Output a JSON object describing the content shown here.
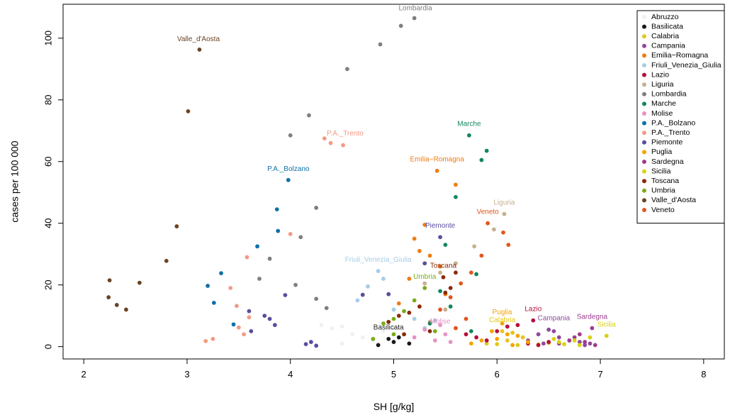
{
  "chart_data": {
    "type": "scatter",
    "title": "",
    "xlabel": "SH [g/kg]",
    "ylabel": "cases per 100 000",
    "xlim": [
      1.8,
      8.2
    ],
    "ylim": [
      -4,
      111
    ],
    "xticks": [
      2,
      3,
      4,
      5,
      6,
      7,
      8
    ],
    "yticks": [
      0,
      20,
      40,
      60,
      80,
      100
    ],
    "grid": false,
    "legend_position": "top-right",
    "series": [
      {
        "name": "Abruzzo",
        "color": "#f0f0f0",
        "label": "",
        "points": [
          [
            4.3,
            7
          ],
          [
            4.4,
            6
          ],
          [
            4.5,
            6.5
          ],
          [
            4.6,
            4
          ],
          [
            4.7,
            3
          ],
          [
            4.9,
            5
          ],
          [
            5,
            6
          ],
          [
            5.1,
            4
          ],
          [
            4.8,
            2
          ],
          [
            4.5,
            1
          ]
        ]
      },
      {
        "name": "Basilicata",
        "color": "#1a1a1a",
        "label": "Basilicata",
        "points": [
          [
            4.95,
            2.5
          ],
          [
            5.0,
            1.5
          ],
          [
            4.85,
            0.5
          ],
          [
            5.15,
            1
          ],
          [
            5.05,
            3
          ]
        ]
      },
      {
        "name": "Calabria",
        "color": "#e6c619",
        "label": "Calabria",
        "points": [
          [
            5.9,
            1
          ],
          [
            6.0,
            0.8
          ],
          [
            6.1,
            2
          ],
          [
            6.2,
            0.5
          ],
          [
            6.3,
            1.5
          ],
          [
            6.4,
            0.7
          ],
          [
            6.5,
            1.2
          ],
          [
            6.05,
            5
          ],
          [
            6.15,
            4.5
          ],
          [
            6.25,
            3
          ]
        ]
      },
      {
        "name": "Campania",
        "color": "#8e4a9c",
        "label": "Campania",
        "points": [
          [
            6.4,
            4
          ],
          [
            6.5,
            5.5
          ],
          [
            6.55,
            5
          ],
          [
            6.6,
            3
          ],
          [
            6.7,
            2
          ],
          [
            6.8,
            1.5
          ],
          [
            6.9,
            1
          ],
          [
            6.3,
            2
          ],
          [
            6.45,
            1
          ],
          [
            6.85,
            0.5
          ]
        ]
      },
      {
        "name": "Emilia-Romagna",
        "color": "#ee7d10",
        "label": "Emilia−Romagna",
        "points": [
          [
            5.42,
            57
          ],
          [
            5.6,
            52.5
          ],
          [
            5.3,
            39.5
          ],
          [
            5.2,
            35
          ],
          [
            5.25,
            31
          ],
          [
            5.45,
            26
          ],
          [
            5.35,
            29.5
          ],
          [
            5.15,
            22
          ],
          [
            5.05,
            14
          ],
          [
            5.5,
            17
          ]
        ]
      },
      {
        "name": "Friuli_Venezia_Giulia",
        "color": "#a6cce6",
        "label": "Friuli_Venezia_Giulia",
        "points": [
          [
            4.85,
            24.5
          ],
          [
            4.9,
            22
          ],
          [
            4.75,
            19.5
          ],
          [
            5.0,
            12
          ],
          [
            5.2,
            9
          ],
          [
            5.3,
            6
          ],
          [
            4.65,
            15
          ],
          [
            5.4,
            8.5
          ]
        ]
      },
      {
        "name": "Lazio",
        "color": "#b5113b",
        "label": "Lazio",
        "points": [
          [
            6.35,
            8.5
          ],
          [
            6.2,
            7
          ],
          [
            6.1,
            6.5
          ],
          [
            6.0,
            5
          ],
          [
            5.8,
            3
          ],
          [
            5.9,
            2
          ],
          [
            6.3,
            1
          ],
          [
            6.5,
            1.5
          ],
          [
            5.7,
            4
          ],
          [
            6.4,
            0.5
          ]
        ]
      },
      {
        "name": "Liguria",
        "color": "#c4b08f",
        "label": "Liguria",
        "points": [
          [
            6.07,
            43
          ],
          [
            5.97,
            38
          ],
          [
            5.78,
            32.5
          ],
          [
            5.6,
            27
          ],
          [
            5.45,
            24
          ],
          [
            5.3,
            20.5
          ],
          [
            5.5,
            12
          ],
          [
            5.35,
            8
          ]
        ]
      },
      {
        "name": "Lombardia",
        "color": "#7f7f7f",
        "label": "Lombardia",
        "points": [
          [
            5.2,
            106.5
          ],
          [
            5.07,
            104
          ],
          [
            4.87,
            98
          ],
          [
            4.55,
            90
          ],
          [
            4.18,
            75
          ],
          [
            4.0,
            68.5
          ],
          [
            4.25,
            45
          ],
          [
            4.1,
            35.5
          ],
          [
            3.8,
            28.5
          ],
          [
            3.7,
            22
          ],
          [
            4.05,
            20
          ],
          [
            4.25,
            15.5
          ],
          [
            4.35,
            12.5
          ]
        ]
      },
      {
        "name": "Marche",
        "color": "#13875c",
        "label": "Marche",
        "points": [
          [
            5.73,
            68.5
          ],
          [
            5.9,
            63.5
          ],
          [
            5.85,
            60.5
          ],
          [
            5.6,
            48.5
          ],
          [
            5.5,
            33
          ],
          [
            5.8,
            23.5
          ],
          [
            5.45,
            18
          ],
          [
            5.55,
            13
          ],
          [
            5.35,
            7.5
          ],
          [
            5.75,
            5
          ]
        ]
      },
      {
        "name": "Molise",
        "color": "#e792c6",
        "label": "Molise",
        "points": [
          [
            5.45,
            7
          ],
          [
            5.3,
            5.5
          ],
          [
            5.5,
            4
          ],
          [
            5.2,
            3
          ],
          [
            5.4,
            2
          ],
          [
            5.55,
            1.5
          ],
          [
            5.6,
            6
          ]
        ]
      },
      {
        "name": "P.A._Bolzano",
        "color": "#0f71a8",
        "label": "P.A._Bolzano",
        "points": [
          [
            3.98,
            54
          ],
          [
            3.87,
            44.5
          ],
          [
            3.88,
            37.5
          ],
          [
            3.68,
            32.5
          ],
          [
            3.33,
            23.8
          ],
          [
            3.2,
            19.7
          ],
          [
            3.26,
            14.2
          ],
          [
            3.45,
            7.2
          ]
        ]
      },
      {
        "name": "P.A._Trento",
        "color": "#f39a84",
        "label": "P.A._Trento",
        "points": [
          [
            4.33,
            67.5
          ],
          [
            4.39,
            66
          ],
          [
            4.51,
            65.3
          ],
          [
            4.0,
            36.5
          ],
          [
            3.58,
            29
          ],
          [
            3.42,
            19
          ],
          [
            3.48,
            13.2
          ],
          [
            3.6,
            9.5
          ],
          [
            3.5,
            6.2
          ],
          [
            3.55,
            4
          ],
          [
            3.25,
            2.5
          ],
          [
            3.18,
            1.8
          ]
        ]
      },
      {
        "name": "Piemonte",
        "color": "#5a4d9c",
        "label": "Piemonte",
        "points": [
          [
            5.45,
            35.5
          ],
          [
            5.3,
            27
          ],
          [
            4.95,
            17
          ],
          [
            4.7,
            16.8
          ],
          [
            3.95,
            16.7
          ],
          [
            3.6,
            11.5
          ],
          [
            3.75,
            10
          ],
          [
            3.8,
            9
          ],
          [
            3.85,
            7
          ],
          [
            3.62,
            5
          ],
          [
            4.2,
            1.5
          ],
          [
            4.15,
            0.8
          ],
          [
            4.25,
            0.3
          ]
        ]
      },
      {
        "name": "Puglia",
        "color": "#f5a300",
        "label": "Puglia",
        "points": [
          [
            6.05,
            7.5
          ],
          [
            5.95,
            5
          ],
          [
            6.1,
            4
          ],
          [
            6.2,
            3.5
          ],
          [
            6.0,
            2.5
          ],
          [
            5.85,
            2
          ],
          [
            6.3,
            1.5
          ],
          [
            6.15,
            0.5
          ],
          [
            5.75,
            1
          ]
        ]
      },
      {
        "name": "Sardegna",
        "color": "#9c3d8e",
        "label": "Sardegna",
        "points": [
          [
            6.92,
            6
          ],
          [
            6.8,
            4
          ],
          [
            6.75,
            3
          ],
          [
            6.7,
            2
          ],
          [
            6.6,
            1
          ],
          [
            6.85,
            1.5
          ],
          [
            6.95,
            0.5
          ]
        ]
      },
      {
        "name": "Sicilia",
        "color": "#d9d20f",
        "label": "Sicilia",
        "points": [
          [
            7.06,
            3.5
          ],
          [
            6.9,
            3
          ],
          [
            6.75,
            2
          ],
          [
            6.6,
            1.5
          ],
          [
            6.65,
            0.8
          ],
          [
            6.8,
            0.5
          ],
          [
            6.55,
            2.5
          ]
        ]
      },
      {
        "name": "Toscana",
        "color": "#8a2a06",
        "label": "Toscana",
        "points": [
          [
            5.48,
            22.5
          ],
          [
            5.6,
            24
          ],
          [
            5.55,
            19
          ],
          [
            5.5,
            17.5
          ],
          [
            5.25,
            13
          ],
          [
            5.15,
            11
          ],
          [
            5.05,
            10
          ],
          [
            4.95,
            8
          ],
          [
            5.35,
            5
          ],
          [
            5.1,
            4
          ]
        ]
      },
      {
        "name": "Umbria",
        "color": "#7bab18",
        "label": "Umbria",
        "points": [
          [
            5.3,
            19
          ],
          [
            5.2,
            15
          ],
          [
            5.1,
            11.5
          ],
          [
            5.0,
            9
          ],
          [
            4.9,
            7.5
          ],
          [
            5.4,
            5
          ],
          [
            5.0,
            4
          ],
          [
            4.8,
            2.5
          ]
        ]
      },
      {
        "name": "Valle_d'Aosta",
        "color": "#6b4323",
        "label": "Valle_d'Aosta",
        "points": [
          [
            3.12,
            96.3
          ],
          [
            3.01,
            76.3
          ],
          [
            2.9,
            39
          ],
          [
            2.8,
            27.8
          ],
          [
            2.54,
            20.7
          ],
          [
            2.25,
            21.5
          ],
          [
            2.24,
            16
          ],
          [
            2.32,
            13.5
          ],
          [
            2.41,
            12
          ]
        ]
      },
      {
        "name": "Veneto",
        "color": "#e0571f",
        "label": "Veneto",
        "points": [
          [
            5.91,
            40
          ],
          [
            6.06,
            37
          ],
          [
            6.11,
            33
          ],
          [
            5.85,
            29.5
          ],
          [
            5.75,
            24
          ],
          [
            5.65,
            20.5
          ],
          [
            5.55,
            16
          ],
          [
            5.45,
            12
          ],
          [
            5.7,
            9
          ],
          [
            5.6,
            6
          ]
        ]
      }
    ],
    "annotations": [
      {
        "text": "Lombardia",
        "series": "Lombardia",
        "x": 5.21,
        "y": 109
      },
      {
        "text": "Valle_d'Aosta",
        "series": "Valle_d'Aosta",
        "x": 3.11,
        "y": 99
      },
      {
        "text": "P.A._Trento",
        "series": "P.A._Trento",
        "x": 4.53,
        "y": 68.5
      },
      {
        "text": "Marche",
        "series": "Marche",
        "x": 5.73,
        "y": 71.5
      },
      {
        "text": "Emilia−Romagna",
        "series": "Emilia-Romagna",
        "x": 5.42,
        "y": 60
      },
      {
        "text": "P.A._Bolzano",
        "series": "P.A._Bolzano",
        "x": 3.98,
        "y": 57
      },
      {
        "text": "Liguria",
        "series": "Liguria",
        "x": 6.07,
        "y": 46
      },
      {
        "text": "Veneto",
        "series": "Veneto",
        "x": 5.91,
        "y": 43
      },
      {
        "text": "Piemonte",
        "series": "Piemonte",
        "x": 5.45,
        "y": 38.5
      },
      {
        "text": "Friuli_Venezia_Giulia",
        "series": "Friuli_Venezia_Giulia",
        "x": 4.85,
        "y": 27.5
      },
      {
        "text": "Toscana",
        "series": "Toscana",
        "x": 5.48,
        "y": 25.5
      },
      {
        "text": "Umbria",
        "series": "Umbria",
        "x": 5.3,
        "y": 22
      },
      {
        "text": "Lazio",
        "series": "Lazio",
        "x": 6.35,
        "y": 11.5
      },
      {
        "text": "Puglia",
        "series": "Puglia",
        "x": 6.05,
        "y": 10.5
      },
      {
        "text": "Campania",
        "series": "Campania",
        "x": 6.55,
        "y": 8.5
      },
      {
        "text": "Calabria",
        "series": "Calabria",
        "x": 6.05,
        "y": 8
      },
      {
        "text": "Sardegna",
        "series": "Sardegna",
        "x": 6.92,
        "y": 9
      },
      {
        "text": "Sicilia",
        "series": "Sicilia",
        "x": 7.06,
        "y": 6.5
      },
      {
        "text": "Molise",
        "series": "Molise",
        "x": 5.45,
        "y": 7.5
      },
      {
        "text": "Basilicata",
        "series": "Basilicata",
        "x": 4.95,
        "y": 5.5
      }
    ]
  }
}
